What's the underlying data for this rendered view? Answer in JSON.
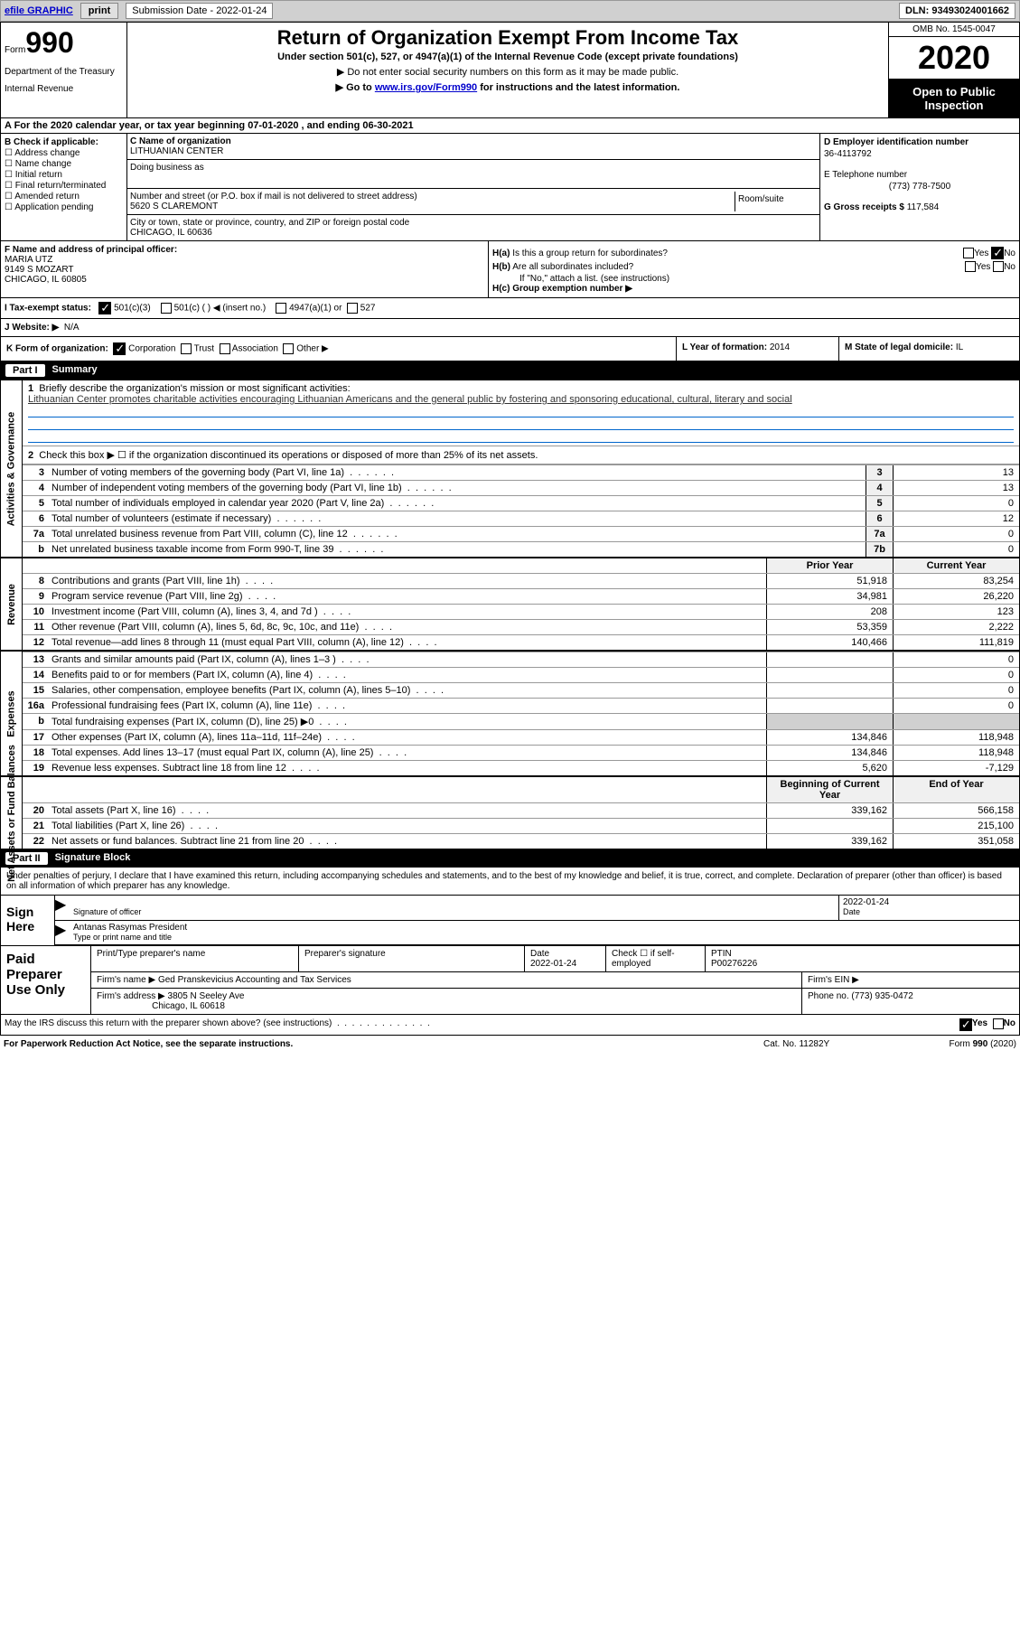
{
  "top_bar": {
    "efile": "efile GRAPHIC",
    "print": "print",
    "submission_label": "Submission Date -",
    "submission_date": "2022-01-24",
    "dln_label": "DLN:",
    "dln": "93493024001662"
  },
  "header": {
    "form_label": "Form",
    "form_num": "990",
    "dept1": "Department of the Treasury",
    "dept2": "Internal Revenue",
    "title": "Return of Organization Exempt From Income Tax",
    "subtitle": "Under section 501(c), 527, or 4947(a)(1) of the Internal Revenue Code (except private foundations)",
    "note1": "▶ Do not enter social security numbers on this form as it may be made public.",
    "note2_pre": "▶ Go to ",
    "note2_link": "www.irs.gov/Form990",
    "note2_post": " for instructions and the latest information.",
    "omb": "OMB No. 1545-0047",
    "year": "2020",
    "open": "Open to Public Inspection"
  },
  "row_a": "A For the 2020 calendar year, or tax year beginning 07-01-2020   , and ending 06-30-2021",
  "b": {
    "label": "B Check if applicable:",
    "items": [
      "Address change",
      "Name change",
      "Initial return",
      "Final return/terminated",
      "Amended return",
      "Application pending"
    ]
  },
  "c": {
    "name_label": "C Name of organization",
    "name": "LITHUANIAN CENTER",
    "dba_label": "Doing business as",
    "addr_label": "Number and street (or P.O. box if mail is not delivered to street address)",
    "room_label": "Room/suite",
    "addr": "5620 S CLAREMONT",
    "city_label": "City or town, state or province, country, and ZIP or foreign postal code",
    "city": "CHICAGO, IL  60636"
  },
  "d": {
    "ein_label": "D Employer identification number",
    "ein": "36-4113792",
    "phone_label": "E Telephone number",
    "phone": "(773) 778-7500",
    "gross_label": "G Gross receipts $",
    "gross": "117,584"
  },
  "f": {
    "label": "F  Name and address of principal officer:",
    "name": "MARIA UTZ",
    "addr1": "9149 S MOZART",
    "addr2": "CHICAGO, IL  60805"
  },
  "h": {
    "a_label": "H(a)  Is this a group return for subordinates?",
    "b_label": "H(b)  Are all subordinates included?",
    "b_note": "If \"No,\" attach a list. (see instructions)",
    "c_label": "H(c)  Group exemption number ▶",
    "yes": "Yes",
    "no": "No"
  },
  "i": {
    "label": "I   Tax-exempt status:",
    "opt1": "501(c)(3)",
    "opt2": "501(c) (  ) ◀ (insert no.)",
    "opt3": "4947(a)(1) or",
    "opt4": "527"
  },
  "j": {
    "label": "J   Website: ▶",
    "value": "N/A"
  },
  "k": {
    "label": "K Form of organization:",
    "opts": [
      "Corporation",
      "Trust",
      "Association",
      "Other ▶"
    ],
    "l_label": "L Year of formation:",
    "l_val": "2014",
    "m_label": "M State of legal domicile:",
    "m_val": "IL"
  },
  "part1": {
    "num": "Part I",
    "title": "Summary"
  },
  "summary": {
    "q1": "Briefly describe the organization's mission or most significant activities:",
    "q1_ans": "Lithuanian Center promotes charitable activities encouraging Lithuanian Americans and the general public by fostering and sponsoring educational, cultural, literary and social",
    "q2": "Check this box ▶ ☐  if the organization discontinued its operations or disposed of more than 25% of its net assets.",
    "vert_gov": "Activities & Governance",
    "vert_rev": "Revenue",
    "vert_exp": "Expenses",
    "vert_net": "Net Assets or Fund Balances",
    "prior_hdr": "Prior Year",
    "cur_hdr": "Current Year",
    "begin_hdr": "Beginning of Current Year",
    "end_hdr": "End of Year"
  },
  "rows_gov": [
    {
      "n": "3",
      "txt": "Number of voting members of the governing body (Part VI, line 1a)",
      "box": "3",
      "val": "13"
    },
    {
      "n": "4",
      "txt": "Number of independent voting members of the governing body (Part VI, line 1b)",
      "box": "4",
      "val": "13"
    },
    {
      "n": "5",
      "txt": "Total number of individuals employed in calendar year 2020 (Part V, line 2a)",
      "box": "5",
      "val": "0"
    },
    {
      "n": "6",
      "txt": "Total number of volunteers (estimate if necessary)",
      "box": "6",
      "val": "12"
    },
    {
      "n": "7a",
      "txt": "Total unrelated business revenue from Part VIII, column (C), line 12",
      "box": "7a",
      "val": "0"
    },
    {
      "n": "b",
      "txt": "Net unrelated business taxable income from Form 990-T, line 39",
      "box": "7b",
      "val": "0"
    }
  ],
  "rows_rev": [
    {
      "n": "8",
      "txt": "Contributions and grants (Part VIII, line 1h)",
      "prior": "51,918",
      "cur": "83,254"
    },
    {
      "n": "9",
      "txt": "Program service revenue (Part VIII, line 2g)",
      "prior": "34,981",
      "cur": "26,220"
    },
    {
      "n": "10",
      "txt": "Investment income (Part VIII, column (A), lines 3, 4, and 7d )",
      "prior": "208",
      "cur": "123"
    },
    {
      "n": "11",
      "txt": "Other revenue (Part VIII, column (A), lines 5, 6d, 8c, 9c, 10c, and 11e)",
      "prior": "53,359",
      "cur": "2,222"
    },
    {
      "n": "12",
      "txt": "Total revenue—add lines 8 through 11 (must equal Part VIII, column (A), line 12)",
      "prior": "140,466",
      "cur": "111,819"
    }
  ],
  "rows_exp": [
    {
      "n": "13",
      "txt": "Grants and similar amounts paid (Part IX, column (A), lines 1–3 )",
      "prior": "",
      "cur": "0"
    },
    {
      "n": "14",
      "txt": "Benefits paid to or for members (Part IX, column (A), line 4)",
      "prior": "",
      "cur": "0"
    },
    {
      "n": "15",
      "txt": "Salaries, other compensation, employee benefits (Part IX, column (A), lines 5–10)",
      "prior": "",
      "cur": "0"
    },
    {
      "n": "16a",
      "txt": "Professional fundraising fees (Part IX, column (A), line 11e)",
      "prior": "",
      "cur": "0"
    },
    {
      "n": "b",
      "txt": "Total fundraising expenses (Part IX, column (D), line 25) ▶0",
      "prior": "grey",
      "cur": "grey"
    },
    {
      "n": "17",
      "txt": "Other expenses (Part IX, column (A), lines 11a–11d, 11f–24e)",
      "prior": "134,846",
      "cur": "118,948"
    },
    {
      "n": "18",
      "txt": "Total expenses. Add lines 13–17 (must equal Part IX, column (A), line 25)",
      "prior": "134,846",
      "cur": "118,948"
    },
    {
      "n": "19",
      "txt": "Revenue less expenses. Subtract line 18 from line 12",
      "prior": "5,620",
      "cur": "-7,129"
    }
  ],
  "rows_net": [
    {
      "n": "20",
      "txt": "Total assets (Part X, line 16)",
      "prior": "339,162",
      "cur": "566,158"
    },
    {
      "n": "21",
      "txt": "Total liabilities (Part X, line 26)",
      "prior": "",
      "cur": "215,100"
    },
    {
      "n": "22",
      "txt": "Net assets or fund balances. Subtract line 21 from line 20",
      "prior": "339,162",
      "cur": "351,058"
    }
  ],
  "part2": {
    "num": "Part II",
    "title": "Signature Block"
  },
  "sig": {
    "intro": "Under penalties of perjury, I declare that I have examined this return, including accompanying schedules and statements, and to the best of my knowledge and belief, it is true, correct, and complete. Declaration of preparer (other than officer) is based on all information of which preparer has any knowledge.",
    "sign_here": "Sign Here",
    "officer_label": "Signature of officer",
    "date_label": "Date",
    "date": "2022-01-24",
    "name_label": "Type or print name and title",
    "name": "Antanas Rasymas  President"
  },
  "prep": {
    "label": "Paid Preparer Use Only",
    "h1": "Print/Type preparer's name",
    "h2": "Preparer's signature",
    "h3": "Date",
    "h3_val": "2022-01-24",
    "h4": "Check ☐ if self-employed",
    "h5": "PTIN",
    "h5_val": "P00276226",
    "firm_name_label": "Firm's name     ▶",
    "firm_name": "Ged Pranskevicius Accounting and Tax Services",
    "firm_ein_label": "Firm's EIN ▶",
    "firm_addr_label": "Firm's address ▶",
    "firm_addr1": "3805 N Seeley Ave",
    "firm_addr2": "Chicago, IL  60618",
    "phone_label": "Phone no.",
    "phone": "(773) 935-0472"
  },
  "footer": {
    "discuss": "May the IRS discuss this return with the preparer shown above? (see instructions)",
    "yes": "Yes",
    "no": "No",
    "paperwork": "For Paperwork Reduction Act Notice, see the separate instructions.",
    "cat": "Cat. No. 11282Y",
    "form": "Form 990 (2020)"
  }
}
